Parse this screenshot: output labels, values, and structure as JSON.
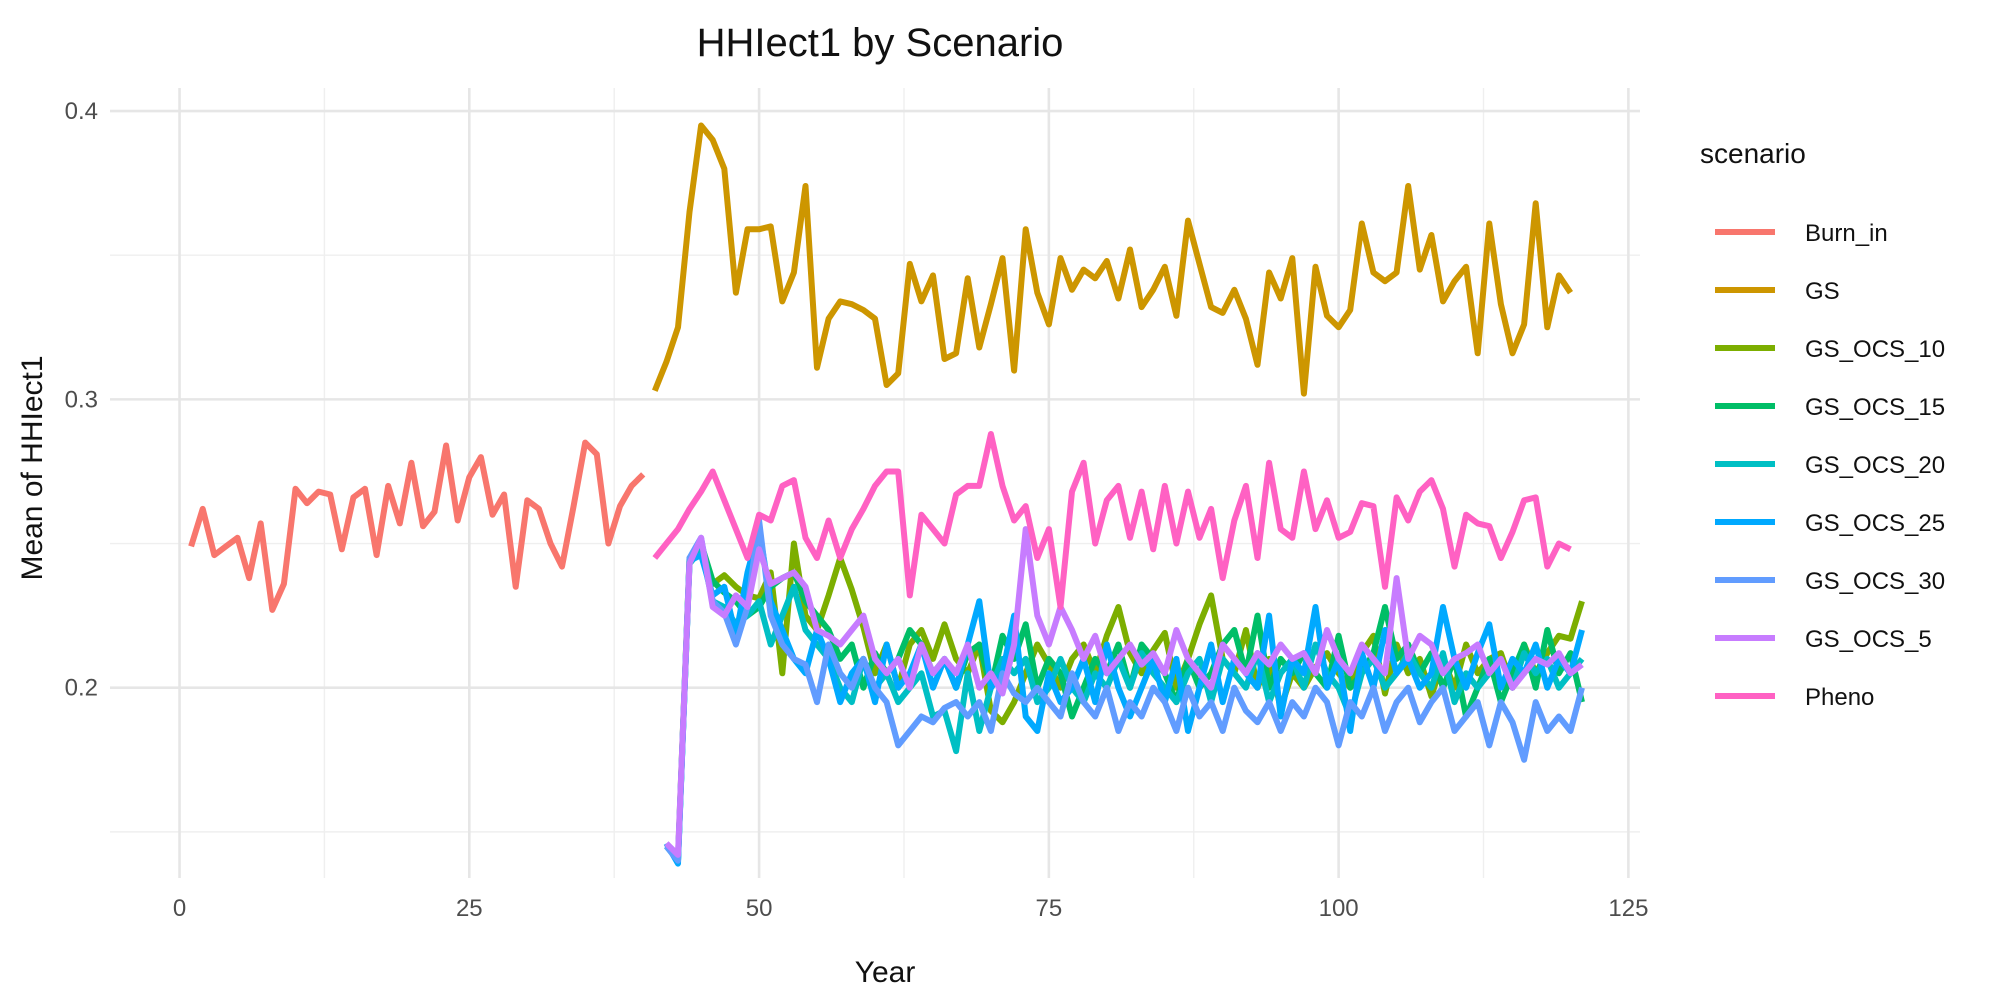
{
  "chart_data": {
    "type": "line",
    "title": "HHIect1 by Scenario",
    "xlabel": "Year",
    "ylabel": "Mean of HHIect1",
    "xlim": [
      -6,
      126
    ],
    "ylim": [
      0.134,
      0.408
    ],
    "x_ticks": [
      0,
      25,
      50,
      75,
      100,
      125
    ],
    "y_ticks": [
      0.2,
      0.3,
      0.4
    ],
    "grid": true,
    "legend_position": "right",
    "legend_title": "scenario",
    "series": [
      {
        "name": "Burn_in",
        "color": "#F8766D",
        "x_start": 1,
        "values": [
          0.249,
          0.262,
          0.246,
          0.249,
          0.252,
          0.238,
          0.257,
          0.227,
          0.236,
          0.269,
          0.264,
          0.268,
          0.267,
          0.248,
          0.266,
          0.269,
          0.246,
          0.27,
          0.257,
          0.278,
          0.256,
          0.261,
          0.284,
          0.258,
          0.273,
          0.28,
          0.26,
          0.267,
          0.235,
          0.265,
          0.262,
          0.25,
          0.242,
          0.263,
          0.285,
          0.281,
          0.25,
          0.263,
          0.27,
          0.274
        ]
      },
      {
        "name": "GS",
        "color": "#CD9600",
        "x_start": 41,
        "values": [
          0.303,
          0.313,
          0.325,
          0.365,
          0.395,
          0.39,
          0.38,
          0.337,
          0.359,
          0.359,
          0.36,
          0.334,
          0.344,
          0.374,
          0.311,
          0.328,
          0.334,
          0.333,
          0.331,
          0.328,
          0.305,
          0.309,
          0.347,
          0.334,
          0.343,
          0.314,
          0.316,
          0.342,
          0.318,
          0.333,
          0.349,
          0.31,
          0.359,
          0.337,
          0.326,
          0.349,
          0.338,
          0.345,
          0.342,
          0.348,
          0.335,
          0.352,
          0.332,
          0.338,
          0.346,
          0.329,
          0.362,
          0.347,
          0.332,
          0.33,
          0.338,
          0.328,
          0.312,
          0.344,
          0.335,
          0.349,
          0.302,
          0.346,
          0.329,
          0.325,
          0.331,
          0.361,
          0.344,
          0.341,
          0.344,
          0.374,
          0.345,
          0.357,
          0.334,
          0.341,
          0.346,
          0.316,
          0.361,
          0.333,
          0.316,
          0.326,
          0.368,
          0.325,
          0.343,
          0.337
        ]
      },
      {
        "name": "GS_OCS_10",
        "color": "#7CAE00",
        "x_start": 42,
        "values": [
          0.145,
          0.141,
          0.245,
          0.248,
          0.236,
          0.239,
          0.235,
          0.232,
          0.231,
          0.24,
          0.205,
          0.25,
          0.225,
          0.22,
          0.232,
          0.245,
          0.234,
          0.221,
          0.205,
          0.215,
          0.2,
          0.215,
          0.22,
          0.21,
          0.222,
          0.21,
          0.205,
          0.215,
          0.192,
          0.188,
          0.195,
          0.205,
          0.215,
          0.208,
          0.2,
          0.21,
          0.215,
          0.205,
          0.218,
          0.228,
          0.212,
          0.205,
          0.213,
          0.219,
          0.2,
          0.21,
          0.222,
          0.232,
          0.21,
          0.205,
          0.22,
          0.2,
          0.21,
          0.193,
          0.205,
          0.2,
          0.207,
          0.212,
          0.205,
          0.2,
          0.212,
          0.218,
          0.198,
          0.215,
          0.205,
          0.21,
          0.197,
          0.21,
          0.2,
          0.215,
          0.205,
          0.21,
          0.212,
          0.2,
          0.215,
          0.205,
          0.212,
          0.218,
          0.217,
          0.23
        ]
      },
      {
        "name": "GS_OCS_15",
        "color": "#00BE67",
        "x_start": 42,
        "values": [
          0.146,
          0.14,
          0.244,
          0.25,
          0.237,
          0.233,
          0.23,
          0.225,
          0.228,
          0.235,
          0.238,
          0.24,
          0.23,
          0.225,
          0.22,
          0.21,
          0.215,
          0.2,
          0.212,
          0.205,
          0.21,
          0.22,
          0.215,
          0.205,
          0.21,
          0.2,
          0.212,
          0.215,
          0.2,
          0.218,
          0.21,
          0.222,
          0.2,
          0.21,
          0.205,
          0.19,
          0.2,
          0.21,
          0.205,
          0.215,
          0.2,
          0.215,
          0.21,
          0.205,
          0.195,
          0.21,
          0.2,
          0.205,
          0.215,
          0.22,
          0.205,
          0.225,
          0.2,
          0.21,
          0.205,
          0.212,
          0.205,
          0.2,
          0.218,
          0.2,
          0.205,
          0.212,
          0.228,
          0.21,
          0.215,
          0.205,
          0.212,
          0.2,
          0.21,
          0.19,
          0.2,
          0.21,
          0.195,
          0.205,
          0.215,
          0.2,
          0.22,
          0.205,
          0.212,
          0.195
        ]
      },
      {
        "name": "GS_OCS_20",
        "color": "#00BFC4",
        "x_start": 42,
        "values": [
          0.145,
          0.14,
          0.243,
          0.248,
          0.23,
          0.228,
          0.222,
          0.225,
          0.23,
          0.215,
          0.225,
          0.235,
          0.22,
          0.215,
          0.21,
          0.2,
          0.195,
          0.21,
          0.2,
          0.205,
          0.195,
          0.2,
          0.205,
          0.19,
          0.192,
          0.178,
          0.205,
          0.185,
          0.2,
          0.21,
          0.205,
          0.21,
          0.195,
          0.2,
          0.21,
          0.2,
          0.195,
          0.205,
          0.2,
          0.21,
          0.2,
          0.212,
          0.205,
          0.2,
          0.195,
          0.205,
          0.21,
          0.195,
          0.21,
          0.205,
          0.2,
          0.212,
          0.195,
          0.205,
          0.21,
          0.2,
          0.215,
          0.205,
          0.2,
          0.19,
          0.205,
          0.21,
          0.2,
          0.205,
          0.212,
          0.205,
          0.2,
          0.212,
          0.195,
          0.205,
          0.2,
          0.205,
          0.21,
          0.2,
          0.212,
          0.205,
          0.21,
          0.2,
          0.205,
          0.21
        ]
      },
      {
        "name": "GS_OCS_25",
        "color": "#00A9FF",
        "x_start": 42,
        "values": [
          0.146,
          0.139,
          0.244,
          0.246,
          0.232,
          0.235,
          0.218,
          0.24,
          0.255,
          0.23,
          0.22,
          0.21,
          0.205,
          0.22,
          0.21,
          0.195,
          0.205,
          0.21,
          0.195,
          0.215,
          0.2,
          0.205,
          0.215,
          0.2,
          0.21,
          0.2,
          0.215,
          0.23,
          0.2,
          0.205,
          0.225,
          0.19,
          0.185,
          0.205,
          0.195,
          0.2,
          0.21,
          0.195,
          0.215,
          0.2,
          0.19,
          0.2,
          0.21,
          0.195,
          0.21,
          0.185,
          0.2,
          0.215,
          0.195,
          0.21,
          0.205,
          0.2,
          0.225,
          0.19,
          0.21,
          0.205,
          0.228,
          0.2,
          0.21,
          0.185,
          0.212,
          0.2,
          0.22,
          0.205,
          0.21,
          0.2,
          0.205,
          0.228,
          0.21,
          0.2,
          0.212,
          0.222,
          0.2,
          0.21,
          0.205,
          0.215,
          0.2,
          0.21,
          0.205,
          0.22
        ]
      },
      {
        "name": "GS_OCS_30",
        "color": "#619CFF",
        "x_start": 42,
        "values": [
          0.145,
          0.14,
          0.245,
          0.252,
          0.23,
          0.226,
          0.215,
          0.228,
          0.258,
          0.225,
          0.215,
          0.21,
          0.208,
          0.195,
          0.215,
          0.205,
          0.2,
          0.21,
          0.2,
          0.195,
          0.18,
          0.185,
          0.19,
          0.188,
          0.193,
          0.195,
          0.19,
          0.195,
          0.185,
          0.205,
          0.198,
          0.195,
          0.2,
          0.195,
          0.19,
          0.205,
          0.195,
          0.19,
          0.2,
          0.185,
          0.195,
          0.19,
          0.2,
          0.195,
          0.185,
          0.2,
          0.19,
          0.195,
          0.185,
          0.2,
          0.192,
          0.188,
          0.195,
          0.185,
          0.195,
          0.19,
          0.2,
          0.195,
          0.18,
          0.195,
          0.19,
          0.2,
          0.185,
          0.195,
          0.2,
          0.188,
          0.195,
          0.2,
          0.185,
          0.19,
          0.195,
          0.18,
          0.195,
          0.188,
          0.175,
          0.195,
          0.185,
          0.19,
          0.185,
          0.2
        ]
      },
      {
        "name": "GS_OCS_5",
        "color": "#C77CFF",
        "x_start": 42,
        "values": [
          0.146,
          0.142,
          0.243,
          0.252,
          0.228,
          0.225,
          0.232,
          0.228,
          0.248,
          0.236,
          0.238,
          0.24,
          0.235,
          0.22,
          0.218,
          0.215,
          0.22,
          0.225,
          0.21,
          0.205,
          0.21,
          0.2,
          0.215,
          0.205,
          0.21,
          0.205,
          0.215,
          0.2,
          0.205,
          0.198,
          0.215,
          0.255,
          0.225,
          0.215,
          0.228,
          0.22,
          0.21,
          0.218,
          0.205,
          0.21,
          0.215,
          0.208,
          0.212,
          0.205,
          0.22,
          0.21,
          0.205,
          0.2,
          0.215,
          0.21,
          0.205,
          0.212,
          0.208,
          0.215,
          0.21,
          0.212,
          0.205,
          0.22,
          0.21,
          0.205,
          0.215,
          0.21,
          0.205,
          0.238,
          0.21,
          0.218,
          0.215,
          0.205,
          0.21,
          0.212,
          0.215,
          0.205,
          0.21,
          0.2,
          0.205,
          0.21,
          0.208,
          0.212,
          0.205,
          0.208
        ]
      },
      {
        "name": "Pheno",
        "color": "#FF61C3",
        "x_start": 41,
        "values": [
          0.245,
          0.25,
          0.255,
          0.262,
          0.268,
          0.275,
          0.265,
          0.255,
          0.245,
          0.26,
          0.258,
          0.27,
          0.272,
          0.252,
          0.245,
          0.258,
          0.245,
          0.255,
          0.262,
          0.27,
          0.275,
          0.275,
          0.232,
          0.26,
          0.255,
          0.25,
          0.267,
          0.27,
          0.27,
          0.288,
          0.27,
          0.258,
          0.263,
          0.245,
          0.255,
          0.228,
          0.268,
          0.278,
          0.25,
          0.265,
          0.27,
          0.252,
          0.268,
          0.248,
          0.27,
          0.25,
          0.268,
          0.252,
          0.262,
          0.238,
          0.258,
          0.27,
          0.245,
          0.278,
          0.255,
          0.252,
          0.275,
          0.255,
          0.265,
          0.252,
          0.254,
          0.264,
          0.263,
          0.235,
          0.266,
          0.258,
          0.268,
          0.272,
          0.262,
          0.242,
          0.26,
          0.257,
          0.256,
          0.245,
          0.254,
          0.265,
          0.266,
          0.242,
          0.25,
          0.248
        ]
      }
    ]
  }
}
